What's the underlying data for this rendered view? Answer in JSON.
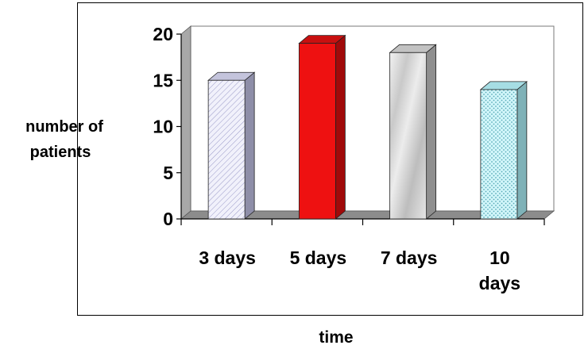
{
  "chart_data": {
    "type": "bar",
    "categories": [
      [
        "3 days"
      ],
      [
        "5 days"
      ],
      [
        "7 days"
      ],
      [
        "10",
        "days"
      ]
    ],
    "values": [
      15,
      19,
      18,
      14
    ],
    "ylim": [
      0,
      20
    ],
    "yticks": [
      0,
      5,
      10,
      15,
      20
    ],
    "ylabel": [
      "number of",
      "patients"
    ],
    "xlabel": "time",
    "grid": false,
    "style": "3d",
    "bar_fills": [
      "#eeeefa",
      "#ee1111",
      "#dcdcdc",
      "#ccf4f8"
    ],
    "bar_patterns": [
      "diagonal-hatch",
      "solid",
      "marble",
      "dotted"
    ],
    "floor_color": "#8c8c8c",
    "wall_color": "#a8a8a8",
    "frame_color": "#000000"
  }
}
